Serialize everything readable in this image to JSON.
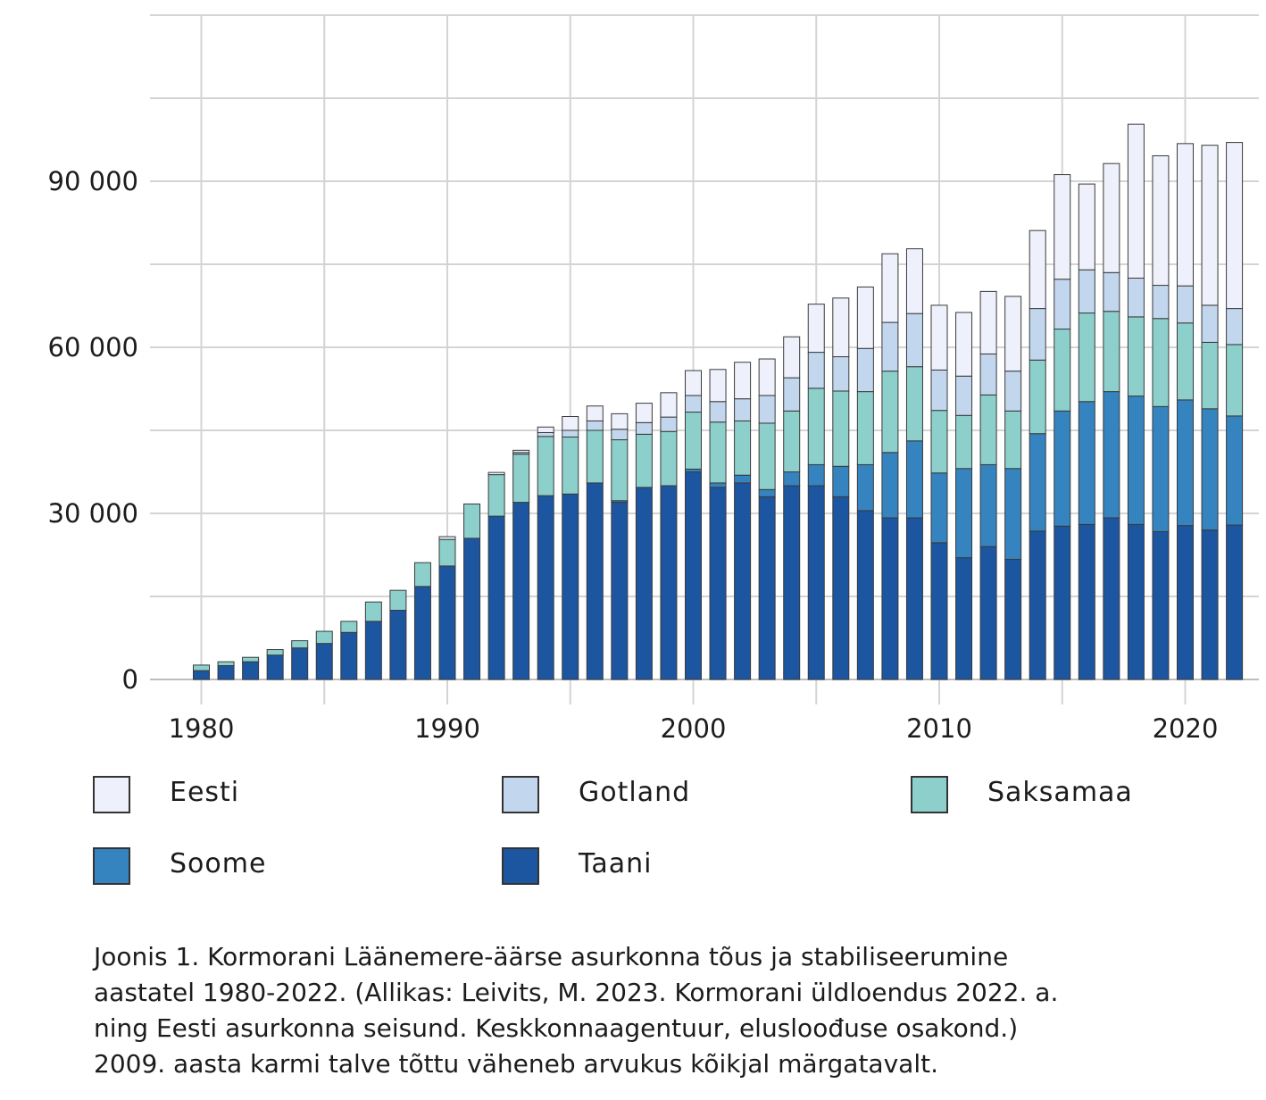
{
  "chart_data": {
    "type": "bar",
    "stacked": true,
    "ylim": [
      0,
      120000
    ],
    "yticks": [
      0,
      30000,
      60000,
      90000
    ],
    "ytick_labels": [
      "0",
      "30 000",
      "60 000",
      "90 000"
    ],
    "xticks": [
      1980,
      1990,
      2000,
      2010,
      2020
    ],
    "xtick_labels": [
      "1980",
      "1990",
      "2000",
      "2010",
      "2020"
    ],
    "grid": true,
    "legend_placement": "bottom",
    "categories": [
      1980,
      1981,
      1982,
      1983,
      1984,
      1985,
      1986,
      1987,
      1988,
      1989,
      1990,
      1991,
      1992,
      1993,
      1994,
      1995,
      1996,
      1997,
      1998,
      1999,
      2000,
      2001,
      2002,
      2003,
      2004,
      2005,
      2006,
      2007,
      2008,
      2009,
      2010,
      2011,
      2012,
      2013,
      2014,
      2015,
      2016,
      2017,
      2018,
      2019,
      2020,
      2021,
      2022
    ],
    "series": [
      {
        "name": "Taani",
        "color": "#1c56a0",
        "values": [
          1600,
          2500,
          3200,
          4400,
          5700,
          6500,
          8500,
          10500,
          12500,
          16800,
          20500,
          25500,
          29500,
          32000,
          33200,
          33500,
          35500,
          32000,
          34700,
          35000,
          37500,
          34700,
          35500,
          33000,
          35000,
          35000,
          33000,
          30500,
          29200,
          29200,
          24700,
          22000,
          24000,
          21700,
          26800,
          27700,
          28000,
          29200,
          28000,
          26700,
          27800,
          27000,
          27900
        ]
      },
      {
        "name": "Soome",
        "color": "#3584c0",
        "values": [
          0,
          0,
          0,
          0,
          0,
          0,
          0,
          0,
          0,
          0,
          0,
          0,
          0,
          0,
          0,
          0,
          0,
          300,
          0,
          0,
          500,
          800,
          1400,
          1300,
          2500,
          3800,
          5500,
          8300,
          11800,
          13900,
          12600,
          16100,
          14800,
          16400,
          17600,
          20800,
          22200,
          22800,
          23200,
          22600,
          22700,
          21900,
          19700
        ]
      },
      {
        "name": "Saksamaa",
        "color": "#8ccfcb",
        "values": [
          1000,
          700,
          800,
          1000,
          1300,
          2200,
          2000,
          3500,
          3600,
          4300,
          4800,
          6200,
          7500,
          8700,
          10700,
          10300,
          9500,
          11000,
          9600,
          9800,
          10300,
          11000,
          9800,
          12000,
          11000,
          13800,
          13600,
          13200,
          14700,
          13400,
          11300,
          9600,
          12600,
          10400,
          13300,
          14800,
          16000,
          14500,
          14300,
          15900,
          13900,
          12000,
          12900
        ]
      },
      {
        "name": "Gotland",
        "color": "#c2d7ee",
        "values": [
          0,
          0,
          0,
          0,
          0,
          0,
          0,
          0,
          0,
          0,
          0,
          0,
          0,
          300,
          700,
          1200,
          1700,
          1900,
          2100,
          2600,
          3000,
          3700,
          4000,
          5000,
          6000,
          6500,
          6200,
          7800,
          8800,
          9600,
          7300,
          7100,
          7400,
          7200,
          9300,
          9000,
          7800,
          7000,
          7000,
          6000,
          6700,
          6700,
          6500
        ]
      },
      {
        "name": "Eesti",
        "color": "#eef0fb",
        "values": [
          0,
          0,
          0,
          0,
          0,
          0,
          0,
          0,
          0,
          0,
          500,
          0,
          400,
          400,
          1000,
          2500,
          2700,
          2800,
          3500,
          4400,
          4500,
          5800,
          6600,
          6600,
          7400,
          8700,
          10600,
          11100,
          12400,
          11700,
          11700,
          11500,
          11300,
          13500,
          14100,
          18900,
          15500,
          19700,
          27800,
          23400,
          25700,
          28900,
          30000
        ]
      }
    ]
  },
  "legend": {
    "items": [
      {
        "label": "Eesti",
        "color": "#eef0fb"
      },
      {
        "label": "Gotland",
        "color": "#c2d7ee"
      },
      {
        "label": "Saksamaa",
        "color": "#8ccfcb"
      },
      {
        "label": "Soome",
        "color": "#3584c0"
      },
      {
        "label": "Taani",
        "color": "#1c56a0"
      }
    ]
  },
  "caption": {
    "lines": [
      "Joonis 1. Kormorani Läänemere-äärse asurkonna tõus ja stabiliseerumine",
      "aastatel 1980-2022. (Allikas: Leivits, M. 2023. Kormorani üldloendus 2022. a.",
      "ning Eesti asurkonna seisund. Keskkonnaagentuur, elusloođuse osakond.)",
      "2009. aasta karmi talve tõttu väheneb arvukus kõikjal märgatavalt."
    ]
  }
}
